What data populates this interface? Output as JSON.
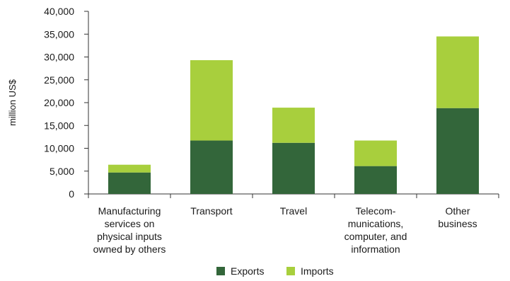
{
  "chart_data": {
    "type": "bar",
    "stacked": true,
    "title": "",
    "xlabel": "",
    "ylabel": "million US$",
    "ylim": [
      0,
      40000
    ],
    "yticks": [
      0,
      5000,
      10000,
      15000,
      20000,
      25000,
      30000,
      35000,
      40000
    ],
    "ytick_labels": [
      "0",
      "5,000",
      "10,000",
      "15,000",
      "20,000",
      "25,000",
      "30,000",
      "35,000",
      "40,000"
    ],
    "grid": false,
    "legend_position": "bottom",
    "categories": [
      [
        "Manufacturing",
        "services on",
        "physical inputs",
        "owned by others"
      ],
      [
        "Transport"
      ],
      [
        "Travel"
      ],
      [
        "Telecom-",
        "munications,",
        "computer, and",
        "information"
      ],
      [
        "Other",
        "business"
      ]
    ],
    "series": [
      {
        "name": "Exports",
        "color": "#33663a",
        "values": [
          4700,
          11700,
          11200,
          6100,
          18800
        ]
      },
      {
        "name": "Imports",
        "color": "#a8cf3d",
        "values": [
          1700,
          17600,
          7700,
          5600,
          15700
        ]
      }
    ]
  }
}
